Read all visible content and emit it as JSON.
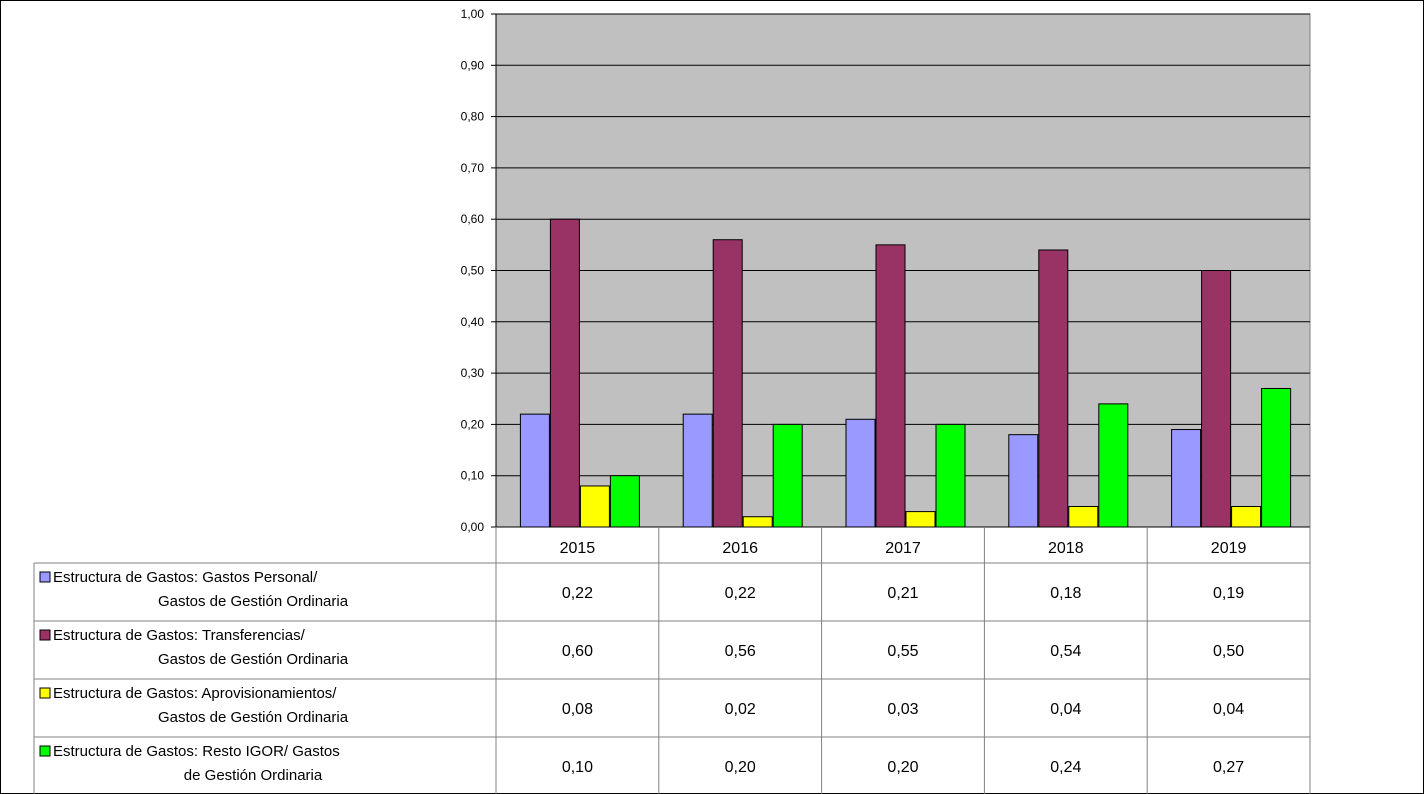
{
  "chart_data": {
    "type": "bar",
    "categories": [
      "2015",
      "2016",
      "2017",
      "2018",
      "2019"
    ],
    "ylim": [
      0,
      1
    ],
    "y_ticks": [
      "0,00",
      "0,10",
      "0,20",
      "0,30",
      "0,40",
      "0,50",
      "0,60",
      "0,70",
      "0,80",
      "0,90",
      "1,00"
    ],
    "grid": true,
    "legend": "data-table",
    "series": [
      {
        "name_line1": "Estructura de Gastos: Gastos Personal/",
        "name_line2": "Gastos de Gestión Ordinaria",
        "color": "#9999ff",
        "values": [
          0.22,
          0.22,
          0.21,
          0.18,
          0.19
        ],
        "labels": [
          "0,22",
          "0,22",
          "0,21",
          "0,18",
          "0,19"
        ]
      },
      {
        "name_line1": "Estructura de Gastos: Transferencias/",
        "name_line2": "Gastos de Gestión Ordinaria",
        "color": "#993366",
        "values": [
          0.6,
          0.56,
          0.55,
          0.54,
          0.5
        ],
        "labels": [
          "0,60",
          "0,56",
          "0,55",
          "0,54",
          "0,50"
        ]
      },
      {
        "name_line1": "Estructura de Gastos: Aprovisionamientos/",
        "name_line2": "Gastos de Gestión Ordinaria",
        "color": "#ffff00",
        "values": [
          0.08,
          0.02,
          0.03,
          0.04,
          0.04
        ],
        "labels": [
          "0,08",
          "0,02",
          "0,03",
          "0,04",
          "0,04"
        ]
      },
      {
        "name_line1": "Estructura de Gastos: Resto IGOR/ Gastos",
        "name_line2": "de Gestión Ordinaria",
        "color": "#00ff00",
        "values": [
          0.1,
          0.2,
          0.2,
          0.24,
          0.27
        ],
        "labels": [
          "0,10",
          "0,20",
          "0,20",
          "0,24",
          "0,27"
        ]
      }
    ],
    "plot_background": "#c0c0c0"
  }
}
